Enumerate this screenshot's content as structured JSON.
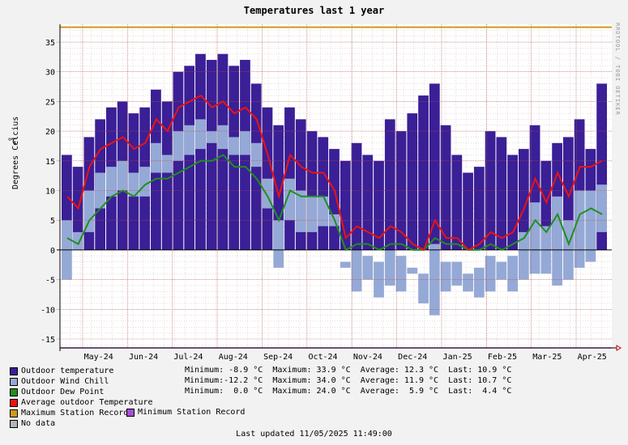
{
  "chart_data": {
    "type": "bar",
    "title": "Temperatures last 1 year",
    "ylabel": "Degrees Celcius",
    "yunit": "°C",
    "watermark": "RRDTOOL / TOBI OETIKER",
    "ylim": [
      -16.5,
      38
    ],
    "yticks": [
      -15,
      -10,
      -5,
      0,
      5,
      10,
      15,
      20,
      25,
      30,
      35
    ],
    "months": [
      "May-24",
      "Jun-24",
      "Jul-24",
      "Aug-24",
      "Sep-24",
      "Oct-24",
      "Nov-24",
      "Dec-24",
      "Jan-25",
      "Feb-25",
      "Mar-25",
      "Apr-25"
    ],
    "grid": true,
    "colors": {
      "outdoor_temperature": "#3a1f96",
      "wind_chill": "#95a9d6",
      "dew_point": "#1f8f1f",
      "average": "#ee1111",
      "max_record": "#cc9a1c",
      "min_record": "#a44fd6",
      "no_data": "#b4b4b4"
    },
    "series": [
      {
        "name": "Outdoor temperature",
        "key": "max",
        "values": [
          16,
          14,
          19,
          22,
          24,
          25,
          23,
          24,
          27,
          25,
          30,
          31,
          33,
          32,
          33,
          31,
          32,
          28,
          24,
          21,
          24,
          22,
          20,
          19,
          17,
          15,
          18,
          16,
          15,
          22,
          20,
          23,
          26,
          28,
          21,
          16,
          13,
          14,
          20,
          19,
          16,
          17,
          21,
          15,
          18,
          19,
          22,
          17,
          28
        ]
      },
      {
        "name": "Outdoor Wind Chill",
        "key": "min",
        "values": [
          -5,
          0,
          3,
          7,
          9,
          10,
          9,
          9,
          13,
          13,
          15,
          16,
          17,
          18,
          17,
          16,
          16,
          14,
          7,
          -3,
          5,
          3,
          3,
          4,
          4,
          -3,
          -7,
          -5,
          -8,
          -6,
          -7,
          -4,
          -9,
          -11,
          -7,
          -6,
          -7,
          -8,
          -7,
          -5,
          -7,
          -5,
          -4,
          -4,
          -6,
          -5,
          -3,
          -2,
          3
        ]
      },
      {
        "name": "Outdoor Dew Point",
        "key": "dew",
        "values": [
          2,
          1,
          5,
          7,
          9,
          10,
          9,
          11,
          12,
          12,
          13,
          14,
          15,
          15,
          16,
          14,
          14,
          12,
          9,
          5,
          10,
          9,
          9,
          9,
          5,
          0,
          1,
          1,
          0,
          1,
          1,
          0,
          0,
          2,
          1,
          1,
          0,
          0,
          1,
          0,
          1,
          2,
          5,
          3,
          6,
          1,
          6,
          7,
          6
        ]
      },
      {
        "name": "Average outdoor Temperature",
        "key": "avg",
        "values": [
          9,
          7,
          14,
          17,
          18,
          19,
          17,
          18,
          22,
          20,
          24,
          25,
          26,
          24,
          25,
          23,
          24,
          22,
          16,
          9,
          16,
          14,
          13,
          13,
          10,
          2,
          4,
          3,
          2,
          4,
          3,
          1,
          0,
          5,
          2,
          2,
          0,
          1,
          3,
          2,
          3,
          7,
          12,
          8,
          13,
          9,
          14,
          14,
          15
        ]
      }
    ],
    "stats": [
      {
        "label": "Minimum: -8.9 °C  Maximum: 33.9 °C  Average: 12.3 °C  Last: 10.9 °C"
      },
      {
        "label": "Minimum:-12.2 °C  Maximum: 34.0 °C  Average: 11.9 °C  Last: 10.7 °C"
      },
      {
        "label": "Minimum:  0.0 °C  Maximum: 24.0 °C  Average:  5.9 °C  Last:  4.4 °C"
      }
    ]
  },
  "legend": [
    {
      "label": "Outdoor temperature",
      "color": "#3a1f96"
    },
    {
      "label": "Outdoor Wind Chill",
      "color": "#95a9d6"
    },
    {
      "label": "Outdoor Dew Point",
      "color": "#1f8f1f"
    },
    {
      "label": "Average outdoor Temperature",
      "color": "#ee1111"
    },
    {
      "label": "Maximum Station Record",
      "color": "#cc9a1c"
    },
    {
      "label": "No data",
      "color": "#b4b4b4"
    }
  ],
  "min_record_label": "Minimum Station Record",
  "last_updated": "Last updated 11/05/2025 11:49:00"
}
